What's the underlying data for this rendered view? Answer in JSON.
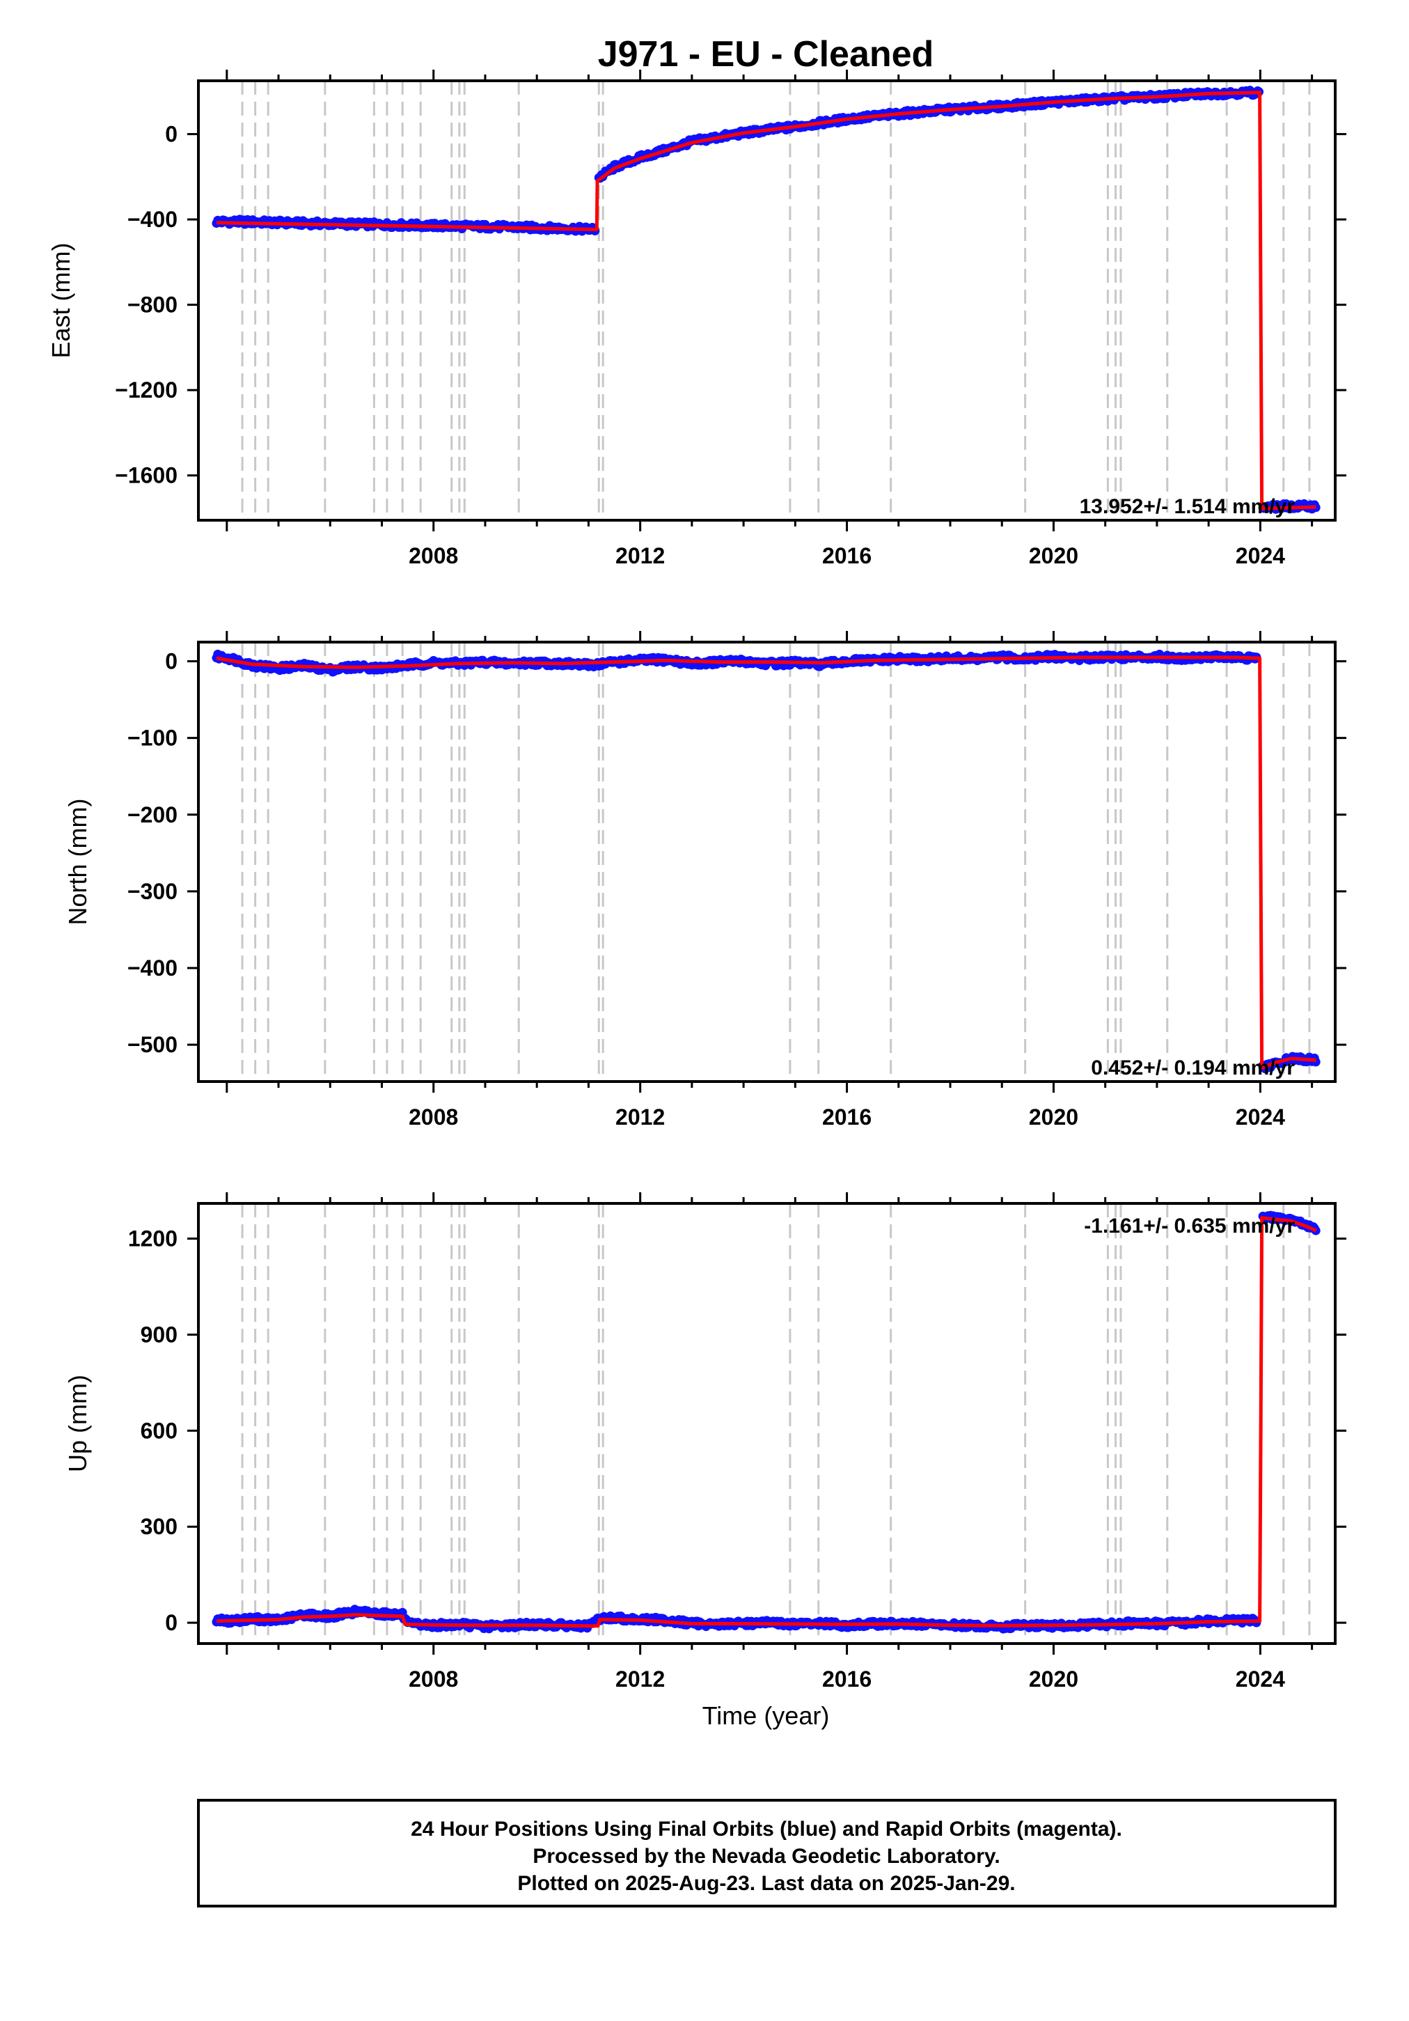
{
  "title": "J971  - EU - Cleaned",
  "xlabel": "Time (year)",
  "caption": [
    "24 Hour Positions Using Final Orbits (blue) and Rapid Orbits (magenta).",
    "Processed by the Nevada Geodetic Laboratory.",
    "Plotted on 2025-Aug-23. Last data on 2025-Jan-29."
  ],
  "colors": {
    "final": "#1010ff",
    "rapid": "#ff00ff",
    "model": "#ff0000",
    "offset_line": "#c8c8c8",
    "frame": "#000000"
  },
  "chart_data": [
    {
      "type": "line",
      "ylabel": "East (mm)",
      "rate_text": "13.952+/- 1.514 mm/yr",
      "xlim": [
        2003.45,
        2025.45
      ],
      "ylim": [
        -1810,
        250
      ],
      "yticks": [
        0,
        -400,
        -800,
        -1200,
        -1600
      ],
      "xticks": [
        2008,
        2012,
        2016,
        2020,
        2024
      ],
      "offsets": [
        2004.3,
        2004.55,
        2004.8,
        2005.9,
        2006.85,
        2007.1,
        2007.4,
        2007.75,
        2008.35,
        2008.5,
        2008.6,
        2009.65,
        2011.2,
        2011.28,
        2014.9,
        2015.45,
        2016.85,
        2019.45,
        2021.05,
        2021.2,
        2021.3,
        2022.2,
        2023.35,
        2024.45,
        2024.95
      ],
      "series": [
        {
          "name": "Final Orbits (blue)",
          "x": [
            2003.8,
            2004.5,
            2005.5,
            2006.5,
            2007.5,
            2008.5,
            2009.5,
            2010.5,
            2011.14,
            2011.2,
            2011.5,
            2012.0,
            2012.5,
            2013.0,
            2014.0,
            2015.0,
            2016.0,
            2017.0,
            2018.0,
            2019.0,
            2020.0,
            2021.0,
            2022.0,
            2023.0,
            2023.95,
            2024.0,
            2024.05,
            2024.5,
            2025.08
          ],
          "y": [
            -410,
            -412,
            -418,
            -422,
            -427,
            -432,
            -436,
            -442,
            -447,
            -205,
            -155,
            -110,
            -75,
            -35,
            5,
            35,
            70,
            95,
            115,
            130,
            150,
            165,
            175,
            190,
            195,
            195,
            -1750,
            -1745,
            -1745
          ]
        },
        {
          "name": "Model",
          "x": [
            2003.8,
            2011.16,
            2011.17,
            2011.5,
            2012.0,
            2013.0,
            2014.0,
            2015.0,
            2016.0,
            2017.0,
            2018.0,
            2019.0,
            2020.0,
            2021.0,
            2022.0,
            2023.0,
            2023.97,
            2023.99,
            2024.01,
            2024.03,
            2025.08
          ],
          "y": [
            -415,
            -447,
            -220,
            -160,
            -115,
            -40,
            5,
            35,
            70,
            95,
            115,
            130,
            150,
            165,
            175,
            190,
            195,
            195,
            -800,
            -1755,
            -1748
          ]
        }
      ]
    },
    {
      "type": "line",
      "ylabel": "North (mm)",
      "rate_text": "0.452+/- 0.194 mm/yr",
      "xlim": [
        2003.45,
        2025.45
      ],
      "ylim": [
        -548,
        25
      ],
      "yticks": [
        0,
        -100,
        -200,
        -300,
        -400,
        -500
      ],
      "xticks": [
        2008,
        2012,
        2016,
        2020,
        2024
      ],
      "offsets": [
        2004.3,
        2004.55,
        2004.8,
        2005.9,
        2006.85,
        2007.1,
        2007.4,
        2007.75,
        2008.35,
        2008.5,
        2008.6,
        2009.65,
        2011.2,
        2011.28,
        2014.9,
        2015.45,
        2016.85,
        2019.45,
        2021.05,
        2021.2,
        2021.3,
        2022.2,
        2023.35,
        2024.45,
        2024.95
      ],
      "series": [
        {
          "name": "Final Orbits (blue)",
          "x": [
            2003.8,
            2004.0,
            2004.5,
            2005.0,
            2005.5,
            2006.0,
            2006.5,
            2007.0,
            2007.5,
            2008.0,
            2008.5,
            2009.0,
            2009.5,
            2010.0,
            2010.5,
            2011.0,
            2011.5,
            2012.0,
            2012.5,
            2013.0,
            2013.5,
            2014.0,
            2014.5,
            2015.0,
            2015.5,
            2016.0,
            2016.5,
            2017.0,
            2017.5,
            2018.0,
            2018.5,
            2019.0,
            2019.5,
            2020.0,
            2020.5,
            2021.0,
            2021.5,
            2022.0,
            2022.5,
            2023.0,
            2023.5,
            2023.95,
            2024.05,
            2024.3,
            2024.6,
            2025.08
          ],
          "y": [
            6,
            5,
            -5,
            -9,
            -6,
            -11,
            -7,
            -9,
            -5,
            -2,
            -3,
            -1,
            -3,
            -2,
            -3,
            -5,
            -1,
            1,
            2,
            -3,
            -1,
            0,
            -3,
            -2,
            -4,
            0,
            1,
            3,
            2,
            4,
            3,
            5,
            4,
            6,
            4,
            6,
            5,
            6,
            4,
            6,
            5,
            3,
            -530,
            -525,
            -518,
            -520
          ]
        },
        {
          "name": "Model",
          "x": [
            2003.8,
            2004.5,
            2005.5,
            2006.5,
            2007.5,
            2008.5,
            2009.5,
            2010.5,
            2011.5,
            2012.5,
            2013.5,
            2014.5,
            2015.5,
            2016.5,
            2017.5,
            2018.5,
            2019.5,
            2020.5,
            2021.5,
            2022.5,
            2023.5,
            2023.97,
            2023.99,
            2024.01,
            2024.03,
            2024.3,
            2024.6,
            2025.08
          ],
          "y": [
            4,
            -4,
            -7,
            -8,
            -6,
            -3,
            -2,
            -3,
            -1,
            1,
            -1,
            -1,
            -2,
            1,
            2,
            3,
            4,
            5,
            5,
            5,
            5,
            4,
            4,
            -270,
            -530,
            -523,
            -518,
            -520
          ]
        }
      ]
    },
    {
      "type": "line",
      "ylabel": "Up (mm)",
      "rate_text": "-1.161+/- 0.635 mm/yr",
      "xlim": [
        2003.45,
        2025.45
      ],
      "ylim": [
        -65,
        1310
      ],
      "yticks": [
        0,
        300,
        600,
        900,
        1200
      ],
      "xticks": [
        2008,
        2012,
        2016,
        2020,
        2024
      ],
      "offsets": [
        2004.3,
        2004.55,
        2004.8,
        2005.9,
        2006.85,
        2007.1,
        2007.4,
        2007.75,
        2008.35,
        2008.5,
        2008.6,
        2009.65,
        2011.2,
        2011.28,
        2014.9,
        2015.45,
        2016.85,
        2019.45,
        2021.05,
        2021.2,
        2021.3,
        2022.2,
        2023.35,
        2024.45,
        2024.95
      ],
      "series": [
        {
          "name": "Final Orbits (blue)",
          "x": [
            2003.8,
            2004.0,
            2004.5,
            2005.0,
            2005.5,
            2006.0,
            2006.5,
            2007.0,
            2007.4,
            2007.5,
            2008.0,
            2008.5,
            2009.0,
            2009.5,
            2010.0,
            2010.5,
            2011.0,
            2011.2,
            2011.5,
            2012.0,
            2012.5,
            2013.0,
            2013.5,
            2014.0,
            2014.5,
            2015.0,
            2015.5,
            2016.0,
            2016.5,
            2017.0,
            2017.5,
            2018.0,
            2018.5,
            2019.0,
            2019.5,
            2020.0,
            2020.5,
            2021.0,
            2021.5,
            2022.0,
            2022.5,
            2023.0,
            2023.5,
            2023.95,
            2024.05,
            2024.3,
            2024.6,
            2024.9,
            2025.08
          ],
          "y": [
            10,
            5,
            12,
            8,
            25,
            20,
            35,
            28,
            25,
            -5,
            -8,
            -5,
            -12,
            -8,
            -5,
            -8,
            -12,
            12,
            15,
            10,
            8,
            -2,
            -5,
            -2,
            0,
            -5,
            -2,
            -8,
            -4,
            -3,
            -5,
            -8,
            -10,
            -12,
            -8,
            -10,
            -8,
            -5,
            -2,
            -3,
            0,
            5,
            8,
            5,
            1270,
            1265,
            1258,
            1240,
            1225
          ]
        },
        {
          "name": "Model",
          "x": [
            2003.8,
            2004.5,
            2005.0,
            2005.5,
            2006.0,
            2006.5,
            2007.0,
            2007.4,
            2007.45,
            2008.0,
            2009.0,
            2010.0,
            2011.0,
            2011.18,
            2011.22,
            2012.0,
            2013.0,
            2014.0,
            2015.0,
            2016.0,
            2017.0,
            2018.0,
            2019.0,
            2020.0,
            2021.0,
            2022.0,
            2023.0,
            2023.97,
            2023.99,
            2024.01,
            2024.03,
            2024.3,
            2024.6,
            2024.9,
            2025.08
          ],
          "y": [
            5,
            8,
            10,
            18,
            20,
            25,
            22,
            20,
            -5,
            -7,
            -8,
            -8,
            -10,
            -10,
            10,
            8,
            -3,
            -3,
            -4,
            -5,
            -4,
            -8,
            -9,
            -8,
            -6,
            -3,
            3,
            5,
            5,
            600,
            1265,
            1260,
            1255,
            1238,
            1225
          ]
        }
      ]
    }
  ]
}
